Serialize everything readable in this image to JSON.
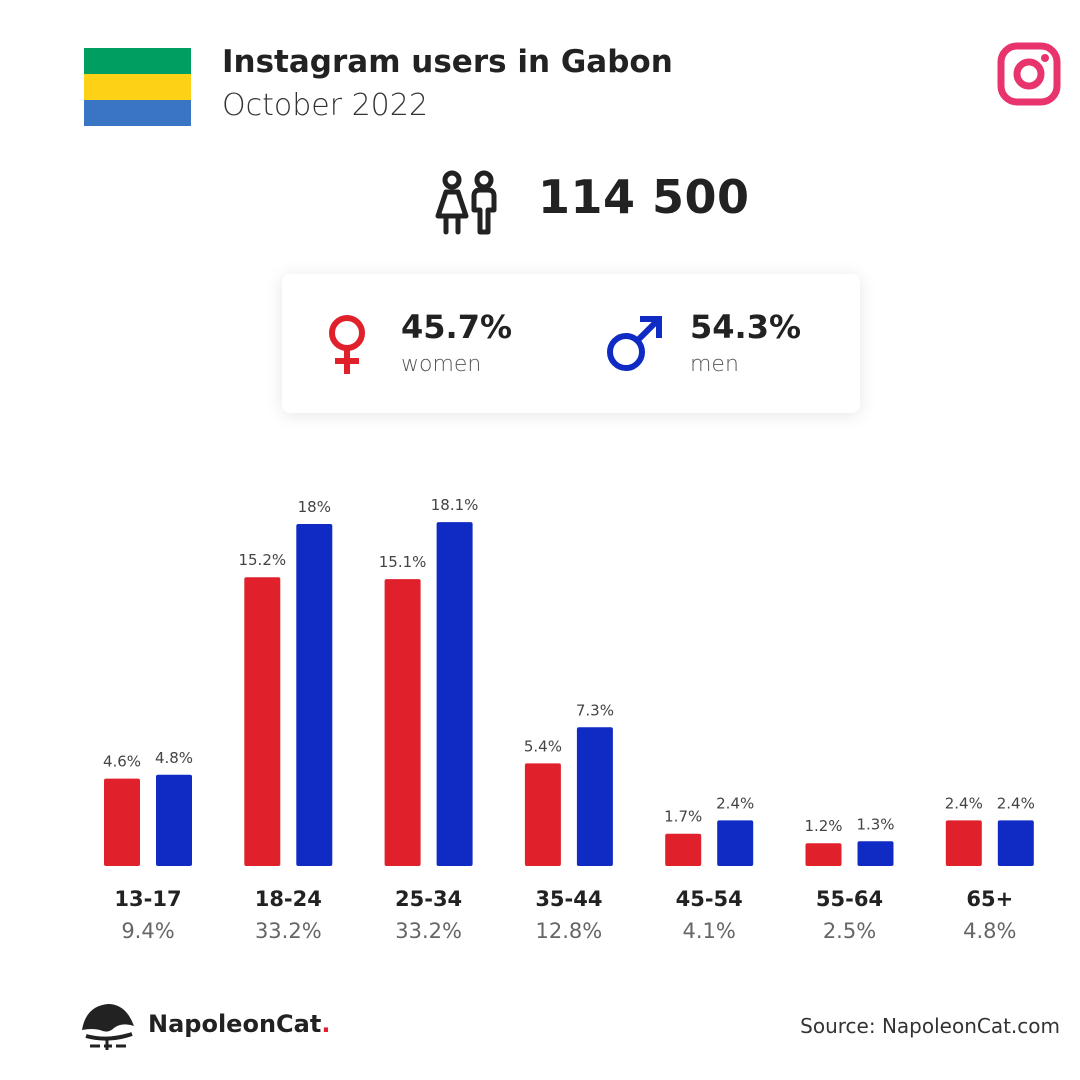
{
  "header": {
    "title": "Instagram users in Gabon",
    "subtitle": "October 2022",
    "flag_colors": [
      "#009e60",
      "#fcd116",
      "#3a75c4"
    ]
  },
  "summary": {
    "total_users": "114 500",
    "women_pct": "45.7%",
    "women_label": "women",
    "men_pct": "54.3%",
    "men_label": "men"
  },
  "colors": {
    "women": "#e0202a",
    "men": "#0f2bc4",
    "instagram": "#e8336d"
  },
  "chart_data": {
    "type": "bar",
    "categories": [
      "13-17",
      "18-24",
      "25-34",
      "35-44",
      "45-54",
      "55-64",
      "65+"
    ],
    "category_totals": [
      "9.4%",
      "33.2%",
      "33.2%",
      "12.8%",
      "4.1%",
      "2.5%",
      "4.8%"
    ],
    "series": [
      {
        "name": "women",
        "values": [
          4.6,
          15.2,
          15.1,
          5.4,
          1.7,
          1.2,
          2.4
        ],
        "labels": [
          "4.6%",
          "15.2%",
          "15.1%",
          "5.4%",
          "1.7%",
          "1.2%",
          "2.4%"
        ]
      },
      {
        "name": "men",
        "values": [
          4.8,
          18,
          18.1,
          7.3,
          2.4,
          1.3,
          2.4
        ],
        "labels": [
          "4.8%",
          "18%",
          "18.1%",
          "7.3%",
          "2.4%",
          "1.3%",
          "2.4%"
        ]
      }
    ],
    "grid": false
  },
  "footer": {
    "brand": "NapoleonCat",
    "brand_dot": ".",
    "source": "Source: NapoleonCat.com"
  },
  "icons": [
    "gabon-flag",
    "instagram-icon",
    "people-icon",
    "female-symbol-icon",
    "male-symbol-icon",
    "napoleoncat-logo-icon"
  ]
}
